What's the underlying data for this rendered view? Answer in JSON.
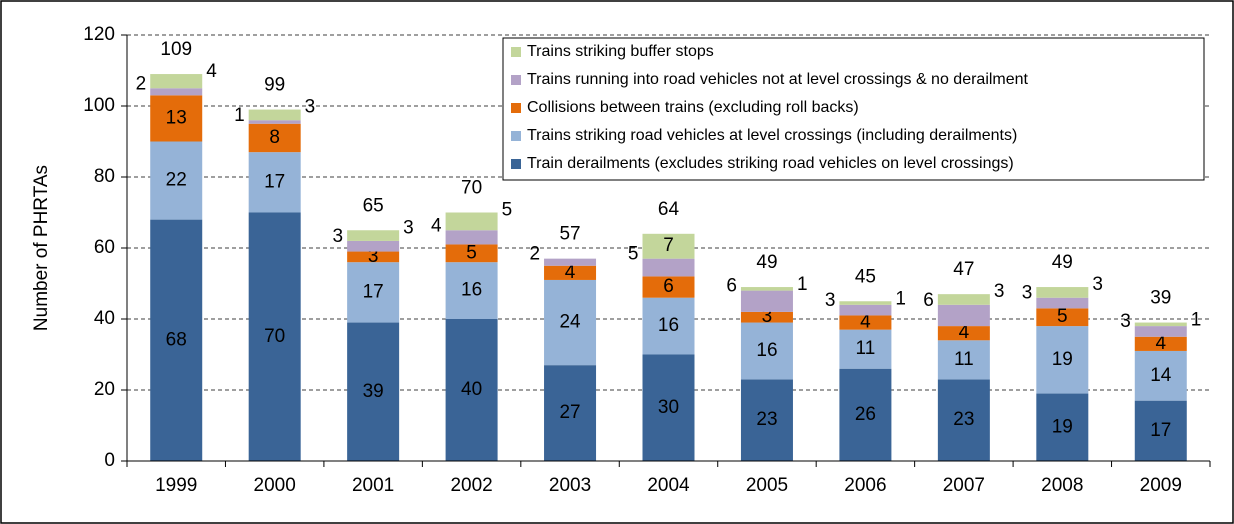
{
  "chart_data": {
    "type": "stacked-bar",
    "y_label": "Number of PHRTAs",
    "categories": [
      "1999",
      "2000",
      "2001",
      "2002",
      "2003",
      "2004",
      "2005",
      "2006",
      "2007",
      "2008",
      "2009"
    ],
    "series": [
      {
        "name": "Train derailments (excludes striking road vehicles on level crossings)",
        "color": "#3a6496",
        "values": [
          68,
          70,
          39,
          40,
          27,
          30,
          23,
          26,
          23,
          19,
          17
        ]
      },
      {
        "name": "Trains striking road vehicles at level crossings (including derailments)",
        "color": "#95b3d7",
        "values": [
          22,
          17,
          17,
          16,
          24,
          16,
          16,
          11,
          11,
          19,
          14
        ]
      },
      {
        "name": "Collisions between trains (excluding roll backs)",
        "color": "#e46c0a",
        "values": [
          13,
          8,
          3,
          5,
          4,
          6,
          3,
          4,
          4,
          5,
          4
        ]
      },
      {
        "name": "Trains running into road vehicles not at level crossings & no derailment",
        "color": "#b3a2c7",
        "values": [
          2,
          1,
          3,
          4,
          2,
          5,
          6,
          3,
          6,
          3,
          3
        ]
      },
      {
        "name": "Trains striking buffer stops",
        "color": "#c3d69b",
        "values": [
          4,
          3,
          3,
          5,
          null,
          7,
          1,
          1,
          3,
          3,
          1
        ]
      }
    ],
    "totals": [
      109,
      99,
      65,
      70,
      57,
      64,
      49,
      45,
      47,
      49,
      39
    ],
    "ylim": [
      0,
      120
    ],
    "yticks": [
      0,
      20,
      40,
      60,
      80,
      100,
      120
    ],
    "grid": true,
    "legend": "top-right"
  }
}
